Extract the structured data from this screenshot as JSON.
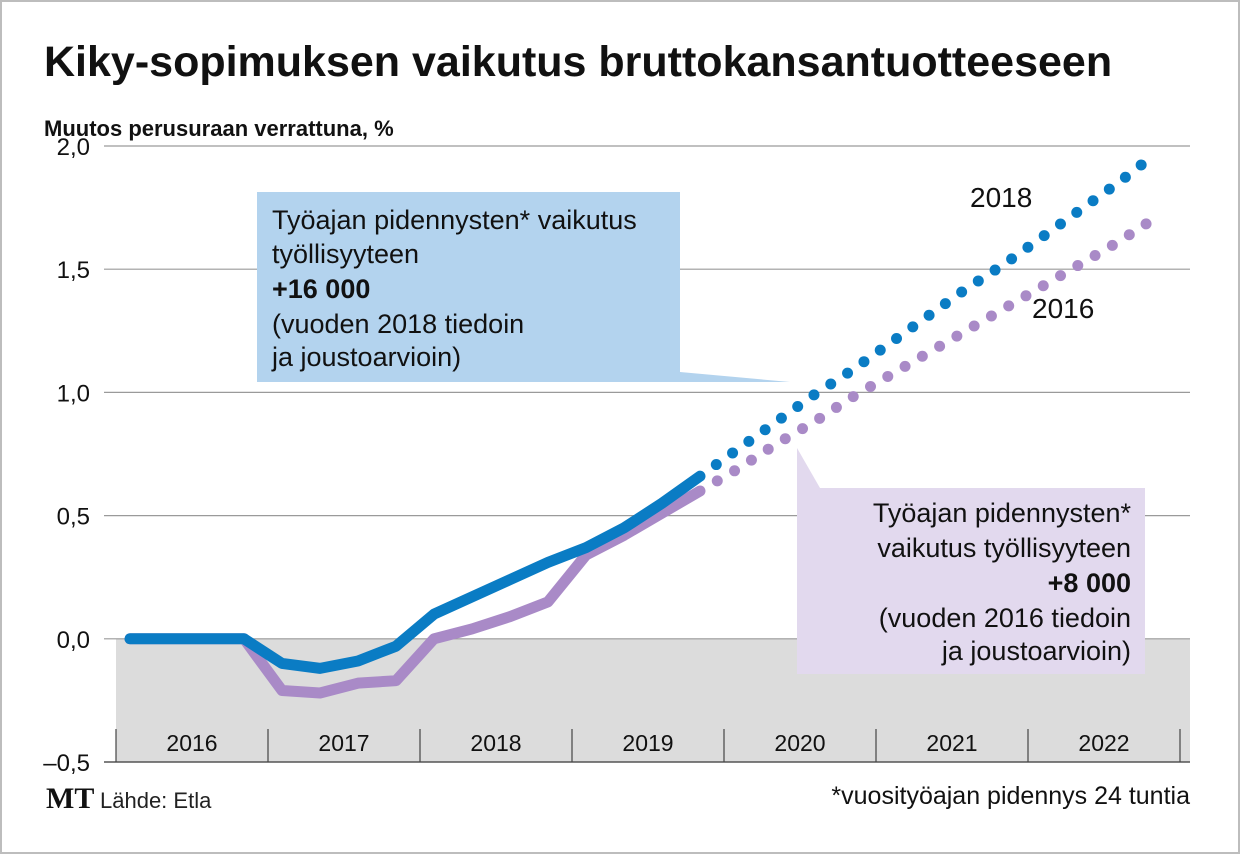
{
  "chart_data": {
    "type": "line",
    "title": "Kiky-sopimuksen vaikutus bruttokansantuotteeseen",
    "ylabel": "Muutos perusuraan verrattuna, %",
    "ylim": [
      -0.5,
      2.0
    ],
    "yticks": [
      "–0,5",
      "0,0",
      "0,5",
      "1,0",
      "1,5",
      "2,0"
    ],
    "ytick_values": [
      -0.5,
      0.0,
      0.5,
      1.0,
      1.5,
      2.0
    ],
    "x_categories": [
      "2016",
      "2017",
      "2018",
      "2019",
      "2020",
      "2021",
      "2022"
    ],
    "xlim": [
      2016.0,
      2023.0
    ],
    "grid": true,
    "negative_region_shaded": true,
    "series": [
      {
        "name": "2018",
        "color": "#0a7cc4",
        "style": "solid-then-dotted",
        "x": [
          2016.0,
          2016.25,
          2016.5,
          2016.75,
          2017.0,
          2017.25,
          2017.5,
          2017.75,
          2018.0,
          2018.25,
          2018.5,
          2018.75,
          2019.0,
          2019.25,
          2019.5,
          2019.75,
          2020.0,
          2020.25,
          2020.5,
          2020.75,
          2021.0,
          2021.25,
          2021.5,
          2021.75,
          2022.0,
          2022.25,
          2022.5,
          2022.75
        ],
        "values": [
          0.0,
          0.0,
          0.0,
          0.0,
          -0.1,
          -0.12,
          -0.09,
          -0.03,
          0.1,
          0.17,
          0.24,
          0.31,
          0.37,
          0.45,
          0.55,
          0.66,
          0.77,
          0.88,
          0.99,
          1.09,
          1.2,
          1.31,
          1.42,
          1.52,
          1.63,
          1.74,
          1.85,
          1.97
        ],
        "projection_from": 2019.75
      },
      {
        "name": "2016",
        "color": "#a98ac7",
        "style": "solid-then-dotted",
        "x": [
          2016.0,
          2016.25,
          2016.5,
          2016.75,
          2017.0,
          2017.25,
          2017.5,
          2017.75,
          2018.0,
          2018.25,
          2018.5,
          2018.75,
          2019.0,
          2019.25,
          2019.5,
          2019.75,
          2020.0,
          2020.25,
          2020.5,
          2020.75,
          2021.0,
          2021.25,
          2021.5,
          2021.75,
          2022.0,
          2022.25,
          2022.5,
          2022.75
        ],
        "values": [
          0.0,
          0.0,
          0.0,
          0.0,
          -0.21,
          -0.22,
          -0.18,
          -0.17,
          0.0,
          0.04,
          0.09,
          0.15,
          0.34,
          0.42,
          0.51,
          0.6,
          0.69,
          0.79,
          0.88,
          0.98,
          1.07,
          1.16,
          1.25,
          1.34,
          1.43,
          1.52,
          1.61,
          1.71
        ],
        "projection_from": 2019.75
      }
    ],
    "annotations": {
      "box_2018": {
        "lines": [
          "Työajan pidennysten* vaikutus",
          "työllisyyteen",
          "+16 000",
          "(vuoden 2018 tiedoin",
          "ja joustoarvioin)"
        ],
        "bold_line": "+16 000",
        "fill": "#b3d3ee"
      },
      "box_2016": {
        "lines": [
          "Työajan pidennysten*",
          "vaikutus työllisyyteen",
          "+8 000",
          "(vuoden 2016 tiedoin",
          "ja joustoarvioin)"
        ],
        "bold_line": "+8 000",
        "fill": "#e2d9ee"
      },
      "footnote": "*vuosityöajan pidennys 24 tuntia"
    }
  },
  "footer": {
    "logo": "MT",
    "source": "Lähde: Etla"
  },
  "colors": {
    "shade_negative": "#dcdcdc",
    "grid": "#9a9a9a",
    "series_2018": "#0a7cc4",
    "series_2016": "#a98ac7"
  }
}
